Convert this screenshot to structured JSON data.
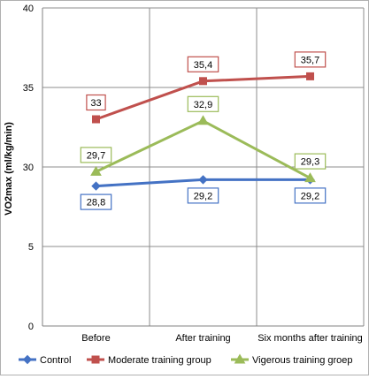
{
  "chart_data": {
    "type": "line",
    "ylabel": "VO2max (ml/kg/min)",
    "y_tick_labels": [
      "0",
      "5",
      "30",
      "35",
      "40"
    ],
    "categories": [
      "Before",
      "After training",
      "Six months after training"
    ],
    "series": [
      {
        "name": "Control",
        "values": [
          28.8,
          29.2,
          29.2
        ],
        "labels": [
          "28,8",
          "29,2",
          "29,2"
        ],
        "color": "#4472C4",
        "marker": "diamond"
      },
      {
        "name": "Moderate training group",
        "values": [
          33,
          35.4,
          35.7
        ],
        "labels": [
          "33",
          "35,4",
          "35,7"
        ],
        "color": "#C0504D",
        "marker": "square"
      },
      {
        "name": "Vigerous training groep",
        "values": [
          29.7,
          32.9,
          29.3
        ],
        "labels": [
          "29,7",
          "32,9",
          "29,3"
        ],
        "color": "#9BBB59",
        "marker": "triangle"
      }
    ],
    "axis_break": {
      "from": 5,
      "to": 25
    },
    "ylim": [
      0,
      40
    ],
    "grid": "both",
    "legend": "bottom"
  }
}
